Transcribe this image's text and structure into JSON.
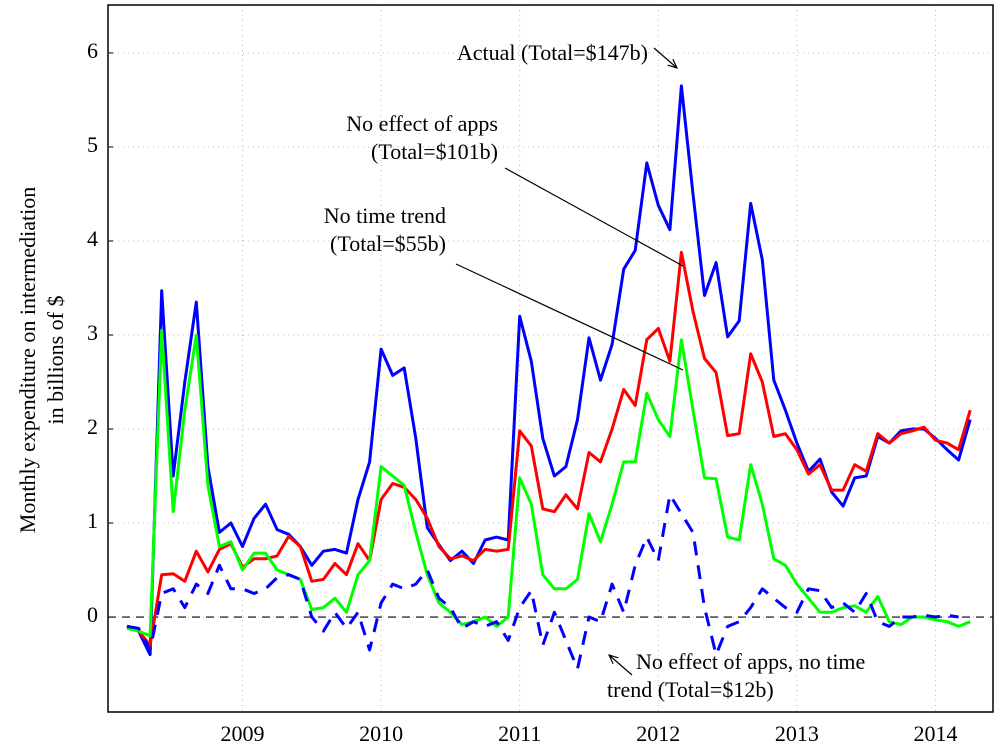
{
  "chart_data": {
    "type": "line",
    "ylabel": [
      "Monthly expenditure on intermediation",
      "in billions of $"
    ],
    "categories": [
      null,
      null,
      null,
      null,
      null,
      null,
      null,
      null,
      null,
      null,
      "2009",
      null,
      null,
      null,
      null,
      null,
      null,
      null,
      null,
      null,
      null,
      null,
      "2010",
      null,
      null,
      null,
      null,
      null,
      null,
      null,
      null,
      null,
      null,
      null,
      "2011",
      null,
      null,
      null,
      null,
      null,
      null,
      null,
      null,
      null,
      null,
      null,
      "2012",
      null,
      null,
      null,
      null,
      null,
      null,
      null,
      null,
      null,
      null,
      null,
      "2013",
      null,
      null,
      null,
      null,
      null,
      null,
      null,
      null,
      null,
      null,
      null,
      "2014",
      null,
      null,
      null
    ],
    "series": [
      {
        "name": "Actual (Total=$147b)",
        "color": "#0000ff",
        "dash": false,
        "values": [
          -0.1,
          -0.15,
          -0.4,
          3.47,
          1.5,
          2.5,
          3.35,
          1.6,
          0.9,
          1.0,
          0.75,
          1.05,
          1.2,
          0.93,
          0.88,
          0.75,
          0.55,
          0.7,
          0.72,
          0.68,
          1.25,
          1.65,
          2.85,
          2.57,
          2.65,
          1.9,
          0.95,
          0.77,
          0.6,
          0.7,
          0.57,
          0.82,
          0.85,
          0.82,
          3.2,
          2.72,
          1.9,
          1.5,
          1.6,
          2.1,
          2.97,
          2.52,
          2.9,
          3.7,
          3.9,
          4.83,
          4.38,
          4.12,
          5.65,
          4.5,
          3.42,
          3.77,
          2.98,
          3.15,
          4.4,
          3.8,
          2.52,
          2.2,
          1.85,
          1.55,
          1.68,
          1.33,
          1.18,
          1.48,
          1.5,
          1.92,
          1.85,
          1.98,
          2.0,
          2.0,
          1.9,
          1.78,
          1.67,
          2.1
        ]
      },
      {
        "name": "No effect of apps (Total=$101b)",
        "color": "#ff0000",
        "dash": false,
        "values": [
          -0.1,
          -0.15,
          -0.3,
          0.45,
          0.46,
          0.38,
          0.7,
          0.48,
          0.72,
          0.78,
          0.53,
          0.62,
          0.62,
          0.65,
          0.86,
          0.75,
          0.38,
          0.4,
          0.57,
          0.45,
          0.78,
          0.6,
          1.25,
          1.42,
          1.38,
          1.25,
          1.05,
          0.75,
          0.62,
          0.65,
          0.6,
          0.72,
          0.7,
          0.72,
          1.98,
          1.82,
          1.15,
          1.12,
          1.3,
          1.15,
          1.75,
          1.65,
          2.0,
          2.42,
          2.25,
          2.95,
          3.07,
          2.72,
          3.88,
          3.25,
          2.75,
          2.6,
          1.93,
          1.95,
          2.8,
          2.5,
          1.92,
          1.95,
          1.78,
          1.52,
          1.62,
          1.35,
          1.35,
          1.62,
          1.55,
          1.95,
          1.85,
          1.95,
          1.98,
          2.02,
          1.88,
          1.85,
          1.78,
          2.2
        ]
      },
      {
        "name": "No time trend (Total=$55b)",
        "color": "#00ff00",
        "dash": false,
        "values": [
          -0.12,
          -0.15,
          -0.2,
          3.05,
          1.12,
          2.2,
          3.0,
          1.4,
          0.75,
          0.8,
          0.5,
          0.68,
          0.68,
          0.5,
          0.45,
          0.4,
          0.08,
          0.1,
          0.2,
          0.05,
          0.45,
          0.6,
          1.6,
          1.5,
          1.4,
          0.9,
          0.45,
          0.15,
          0.05,
          -0.08,
          -0.05,
          0.0,
          -0.1,
          0.0,
          1.48,
          1.2,
          0.45,
          0.3,
          0.3,
          0.4,
          1.1,
          0.8,
          1.2,
          1.65,
          1.65,
          2.38,
          2.1,
          1.92,
          2.95,
          2.2,
          1.48,
          1.47,
          0.85,
          0.82,
          1.62,
          1.2,
          0.62,
          0.55,
          0.35,
          0.2,
          0.05,
          0.05,
          0.1,
          0.12,
          0.05,
          0.22,
          -0.05,
          -0.08,
          0.0,
          0.0,
          -0.03,
          -0.05,
          -0.1,
          -0.05
        ]
      },
      {
        "name": "No effect of apps, no time trend (Total=$12b)",
        "color": "#0000ff",
        "dash": true,
        "values": [
          -0.1,
          -0.12,
          -0.35,
          0.25,
          0.3,
          0.1,
          0.35,
          0.25,
          0.55,
          0.3,
          0.3,
          0.25,
          0.3,
          0.42,
          0.45,
          0.4,
          0.0,
          -0.15,
          0.05,
          -0.12,
          0.05,
          -0.35,
          0.15,
          0.35,
          0.3,
          0.35,
          0.5,
          0.2,
          0.1,
          -0.12,
          -0.05,
          -0.1,
          -0.05,
          -0.25,
          0.1,
          0.28,
          -0.3,
          0.05,
          -0.25,
          -0.55,
          0.0,
          -0.05,
          0.35,
          0.05,
          0.55,
          0.85,
          0.6,
          1.3,
          1.1,
          0.9,
          0.1,
          -0.4,
          -0.1,
          -0.05,
          0.1,
          0.3,
          0.2,
          0.1,
          0.05,
          0.3,
          0.28,
          0.1,
          0.15,
          0.05,
          0.25,
          -0.05,
          -0.1,
          0.0,
          0.0,
          0.02,
          0.0,
          0.02,
          0.0,
          null
        ]
      }
    ],
    "annotations": {
      "actual": "Actual (Total=$147b)",
      "no_apps": [
        "No effect of apps",
        "(Total=$101b)"
      ],
      "no_trend": [
        "No time trend",
        "(Total=$55b)"
      ],
      "neither": [
        "No effect of apps, no time",
        "trend (Total=$12b)"
      ]
    },
    "ylim": [
      -1.01,
      6.51
    ],
    "yticks": [
      0,
      1,
      2,
      3,
      4,
      5,
      6
    ],
    "hline": 0,
    "grid": true
  }
}
